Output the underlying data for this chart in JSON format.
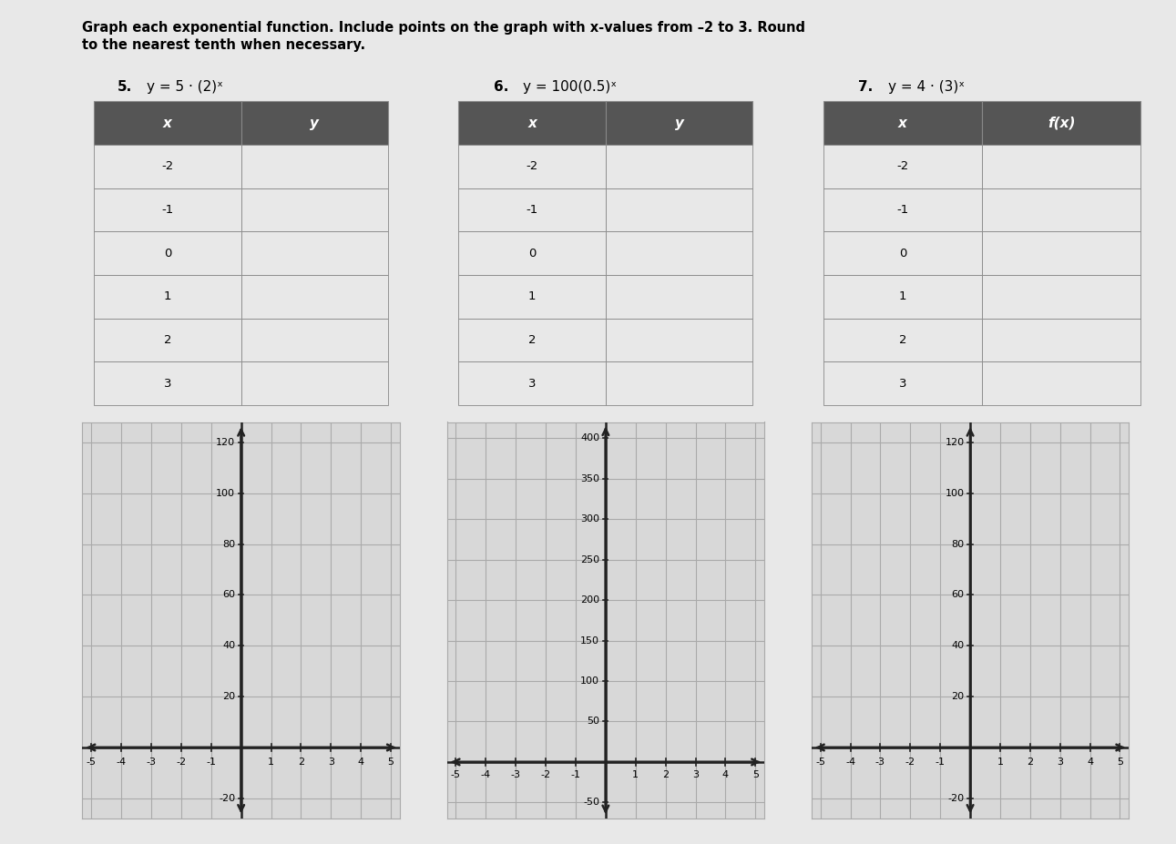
{
  "title_line1": "Graph each exponential function. Include points on the graph with x-values from –2 to 3. Round",
  "title_line2": "to the nearest tenth when necessary.",
  "problems": [
    {
      "number": "5.",
      "equation": "y = 5 · (2)ˣ"
    },
    {
      "number": "6.",
      "equation": "y = 100(0.5)ˣ"
    },
    {
      "number": "7.",
      "equation": "y = 4 · (3)ˣ"
    }
  ],
  "x_values": [
    -2,
    -1,
    0,
    1,
    2,
    3
  ],
  "col_headers": [
    [
      "x",
      "y"
    ],
    [
      "x",
      "y"
    ],
    [
      "x",
      "f(x)"
    ]
  ],
  "graphs": [
    {
      "xlim": [
        -5,
        5
      ],
      "ylim": [
        -20,
        120
      ],
      "yticks": [
        -20,
        0,
        20,
        40,
        60,
        80,
        100,
        120
      ],
      "xticks": [
        -5,
        -4,
        -3,
        -2,
        -1,
        0,
        1,
        2,
        3,
        4,
        5
      ]
    },
    {
      "xlim": [
        -5,
        5
      ],
      "ylim": [
        -50,
        400
      ],
      "yticks": [
        -50,
        0,
        50,
        100,
        150,
        200,
        250,
        300,
        350,
        400
      ],
      "xticks": [
        -5,
        -4,
        -3,
        -2,
        -1,
        0,
        1,
        2,
        3,
        4,
        5
      ]
    },
    {
      "xlim": [
        -5,
        5
      ],
      "ylim": [
        -20,
        120
      ],
      "yticks": [
        -20,
        0,
        20,
        40,
        60,
        80,
        100,
        120
      ],
      "xticks": [
        -5,
        -4,
        -3,
        -2,
        -1,
        0,
        1,
        2,
        3,
        4,
        5
      ]
    }
  ],
  "table_header_color": "#555555",
  "table_header_text_color": "white",
  "table_row_color_light": "#e8e8e8",
  "table_row_color_white": "#f0f0f0",
  "table_border_color": "#888888",
  "bg_color": "#e8e8e8",
  "graph_bg_color": "#d8d8d8",
  "grid_color": "#aaaaaa",
  "axis_color": "#222222",
  "fontsize_title": 10.5,
  "fontsize_problem": 11,
  "fontsize_table": 9.5,
  "fontsize_axis": 8
}
